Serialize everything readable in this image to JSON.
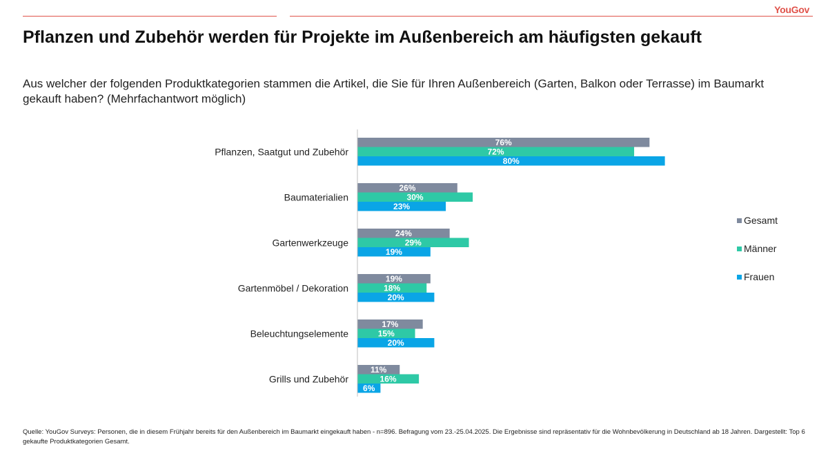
{
  "header": {
    "brand": "YouGov",
    "title": "Pflanzen und Zubehör werden für Projekte im Außenbereich am häufigsten gekauft",
    "subtitle": "Aus welcher der folgenden Produktkategorien stammen die Artikel, die Sie für Ihren Außenbereich (Garten, Balkon oder Terrasse) im Baumarkt gekauft haben? (Mehrfachantwort möglich)"
  },
  "footnote": "Quelle: YouGov Surveys: Personen, die in diesem Frühjahr bereits für den Außenbereich im Baumarkt eingekauft haben - n=896. Befragung vom 23.-25.04.2025. Die Ergebnisse sind repräsentativ für die Wohnbevölkerung in Deutschland ab 18 Jahren. Dargestellt: Top 6 gekaufte Produktkategorien Gesamt.",
  "chart_data": {
    "type": "bar",
    "orientation": "horizontal",
    "title": "Pflanzen und Zubehör werden für Projekte im Außenbereich am häufigsten gekauft",
    "categories": [
      "Pflanzen, Saatgut und Zubehör",
      "Baumaterialien",
      "Gartenwerkzeuge",
      "Gartenmöbel / Dekoration",
      "Beleuchtungselemente",
      "Grills und Zubehör"
    ],
    "series": [
      {
        "name": "Gesamt",
        "color": "#7f8a9e",
        "values": [
          76,
          26,
          24,
          19,
          17,
          11
        ]
      },
      {
        "name": "Männer",
        "color": "#2ec9a6",
        "values": [
          72,
          30,
          29,
          18,
          15,
          16
        ]
      },
      {
        "name": "Frauen",
        "color": "#0aa5e6",
        "values": [
          80,
          23,
          19,
          20,
          20,
          6
        ]
      }
    ],
    "value_suffix": "%",
    "xlim": [
      0,
      100
    ],
    "legend": "right",
    "grid": false
  }
}
